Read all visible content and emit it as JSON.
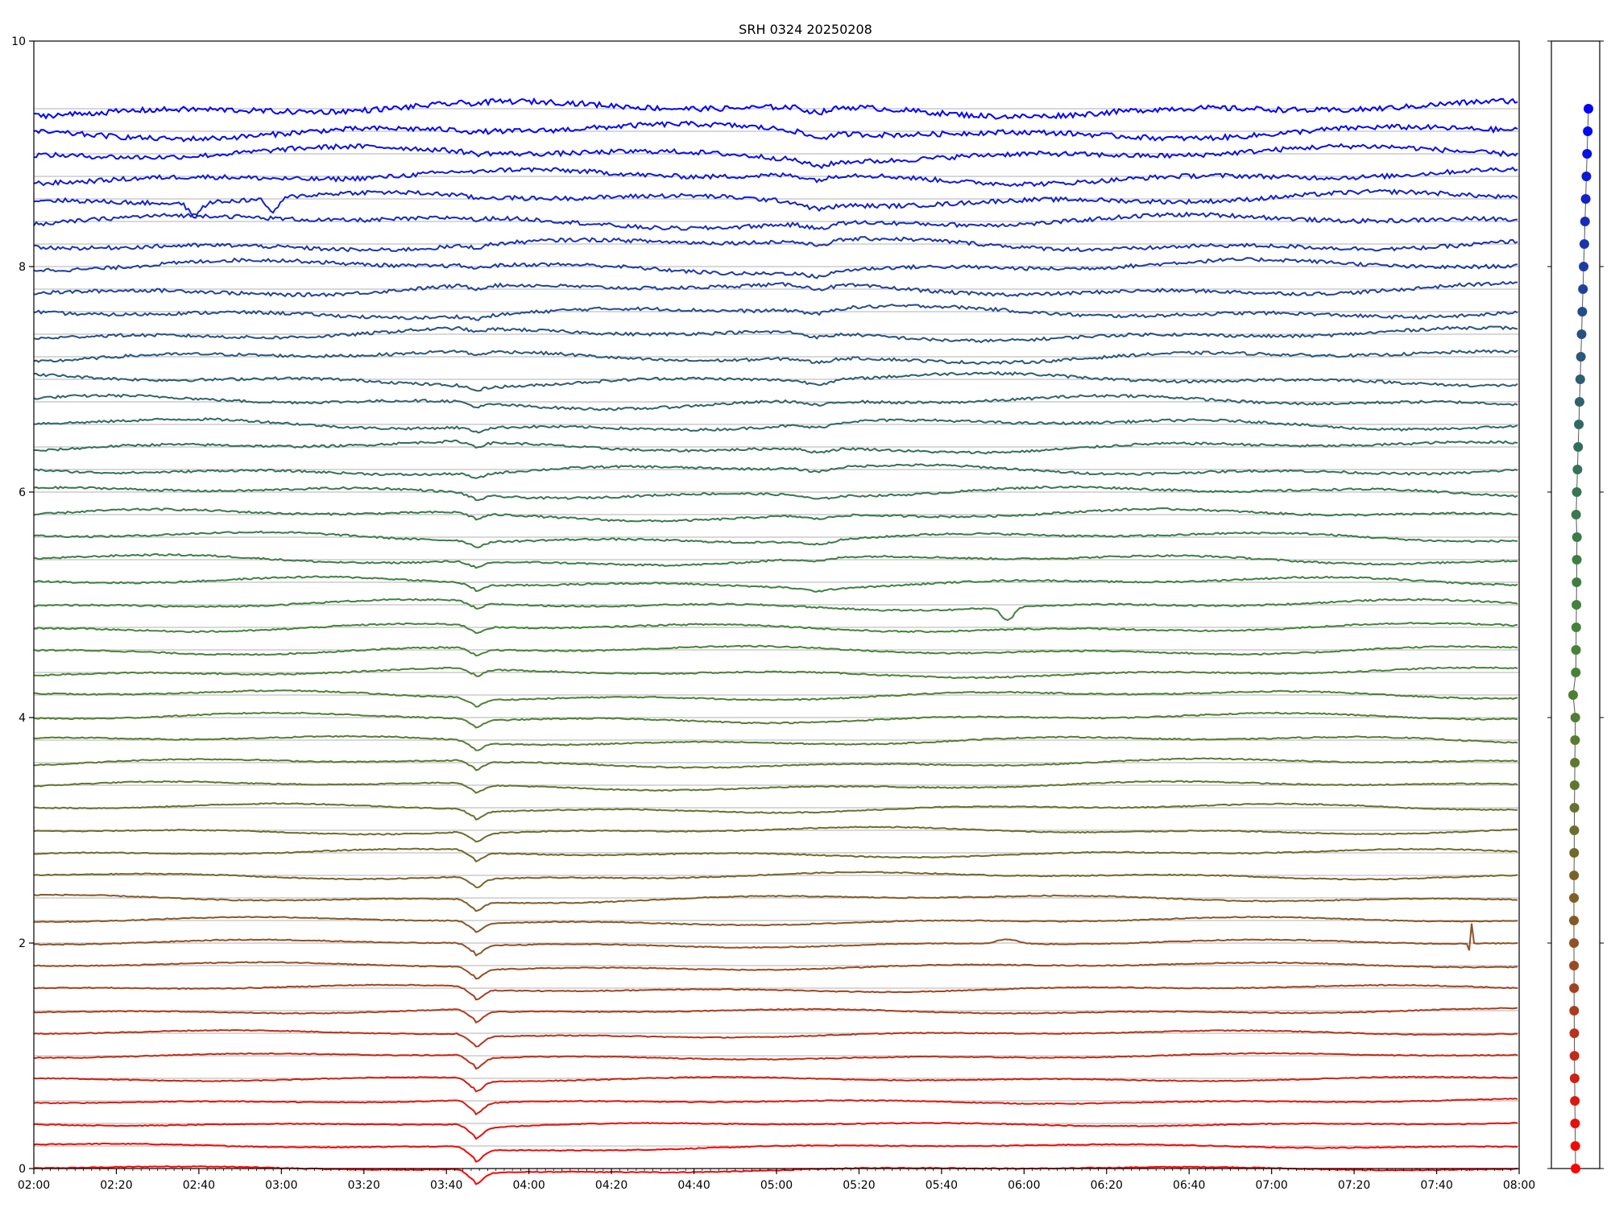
{
  "chart_data": [
    {
      "type": "line",
      "title": "SRH 0324 20250208",
      "xlabel": "",
      "ylabel": "",
      "xlim": [
        "02:00",
        "08:00"
      ],
      "ylim": [
        0,
        10
      ],
      "x_ticks": [
        "02:00",
        "02:20",
        "02:40",
        "03:00",
        "03:20",
        "03:40",
        "04:00",
        "04:20",
        "04:40",
        "05:00",
        "05:20",
        "05:40",
        "06:00",
        "06:20",
        "06:40",
        "07:00",
        "07:20",
        "07:40",
        "08:00"
      ],
      "y_ticks": [
        "0",
        "2",
        "4",
        "6",
        "8",
        "10"
      ],
      "grid": "horizontal reference line at each trace baseline",
      "legend": "none",
      "trace_count": 48,
      "trace_spacing": 0.2,
      "trace_baselines_range": [
        0.0,
        9.4
      ],
      "color_gradient": [
        "#ff0000",
        "#0000ff"
      ],
      "notable_features": [
        {
          "trace_baseline": 8.6,
          "time": "02:39",
          "kind": "dip"
        },
        {
          "trace_baseline": 8.6,
          "time": "02:58",
          "kind": "dip"
        },
        {
          "trace_baseline": 5.0,
          "time": "05:56",
          "kind": "dip"
        },
        {
          "trace_baseline": 2.0,
          "time": "05:56",
          "kind": "bump"
        },
        {
          "trace_baseline": 2.0,
          "time": "07:48",
          "kind": "spike"
        },
        {
          "all_traces": true,
          "time": "03:47",
          "kind": "step dip"
        },
        {
          "upper_traces": true,
          "time": "05:10",
          "kind": "dip"
        }
      ]
    },
    {
      "type": "scatter",
      "title": "",
      "ylim": [
        0,
        10
      ],
      "points_y_range": [
        0.0,
        9.4
      ],
      "point_count": 48,
      "connected_by_line": true,
      "color_gradient": [
        "#ff0000",
        "#0000ff"
      ]
    }
  ]
}
